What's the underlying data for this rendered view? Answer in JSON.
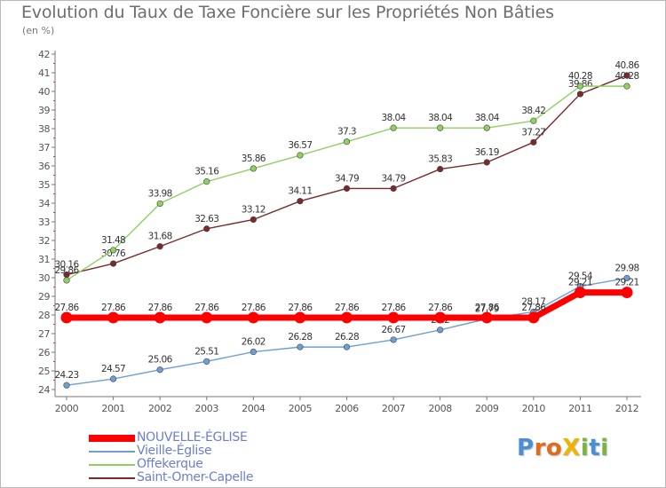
{
  "title": "Evolution du Taux de Taxe Foncière sur les Propriétés Non Bâties",
  "subtitle": "(en %)",
  "logo": {
    "text": "ProXiti",
    "letters": [
      {
        "ch": "P",
        "color": "#4a8fd6"
      },
      {
        "ch": "r",
        "color": "#e36b1e"
      },
      {
        "ch": "o",
        "color": "#e36b1e"
      },
      {
        "ch": "X",
        "color": "#f0b400"
      },
      {
        "ch": "i",
        "color": "#7cb342"
      },
      {
        "ch": "t",
        "color": "#4a8fd6"
      },
      {
        "ch": "i",
        "color": "#7cb342"
      }
    ]
  },
  "chart_data": {
    "type": "line",
    "title": "Evolution du Taux de Taxe Foncière sur les Propriétés Non Bâties",
    "ylabel": "(en %)",
    "xlabel": "",
    "x": [
      "2000",
      "2001",
      "2002",
      "2003",
      "2004",
      "2005",
      "2006",
      "2007",
      "2008",
      "2009",
      "2010",
      "2011",
      "2012"
    ],
    "ylim": [
      24,
      42
    ],
    "yticks": [
      24,
      25,
      26,
      27,
      28,
      29,
      30,
      31,
      32,
      33,
      34,
      35,
      36,
      37,
      38,
      39,
      40,
      41,
      42
    ],
    "grid": false,
    "legend_position": "bottom-left",
    "series": [
      {
        "name": "NOUVELLE-ÉGLISE",
        "color": "#ff0000",
        "values": [
          27.86,
          27.86,
          27.86,
          27.86,
          27.86,
          27.86,
          27.86,
          27.86,
          27.86,
          27.86,
          27.86,
          29.21,
          29.21
        ],
        "labels": [
          "27.86",
          "27.86",
          "27.86",
          "27.86",
          "27.86",
          "27.86",
          "27.86",
          "27.86",
          "27.86",
          "27.86",
          "27.86",
          "29.21",
          "29.21"
        ]
      },
      {
        "name": "Vieille-Église",
        "color": "#6f9fd0",
        "values": [
          24.23,
          24.57,
          25.06,
          25.51,
          26.02,
          26.28,
          26.28,
          26.67,
          27.2,
          27.79,
          28.17,
          29.54,
          29.98
        ],
        "labels": [
          "24.23",
          "24.57",
          "25.06",
          "25.51",
          "26.02",
          "26.28",
          "26.28",
          "26.67",
          "27.2",
          "27.79",
          "28.17",
          "29.54",
          "29.98"
        ]
      },
      {
        "name": "Offekerque",
        "color": "#90d060",
        "values": [
          29.86,
          31.48,
          33.98,
          35.16,
          35.86,
          36.57,
          37.3,
          38.04,
          38.04,
          38.04,
          38.42,
          40.28,
          40.28
        ],
        "labels": [
          "29.86",
          "31.48",
          "33.98",
          "35.16",
          "35.86",
          "36.57",
          "37.3",
          "38.04",
          "38.04",
          "38.04",
          "38.42",
          "40.28",
          "40.28"
        ]
      },
      {
        "name": "Saint-Omer-Capelle",
        "color": "#7a2a2a",
        "values": [
          30.16,
          30.76,
          31.68,
          32.63,
          33.12,
          34.11,
          34.79,
          34.79,
          35.83,
          36.19,
          37.27,
          39.86,
          40.86
        ],
        "labels": [
          "30.16",
          "30.76",
          "31.68",
          "32.63",
          "33.12",
          "34.11",
          "34.79",
          "34.79",
          "35.83",
          "36.19",
          "37.27",
          "39.86",
          "40.86"
        ]
      }
    ]
  }
}
